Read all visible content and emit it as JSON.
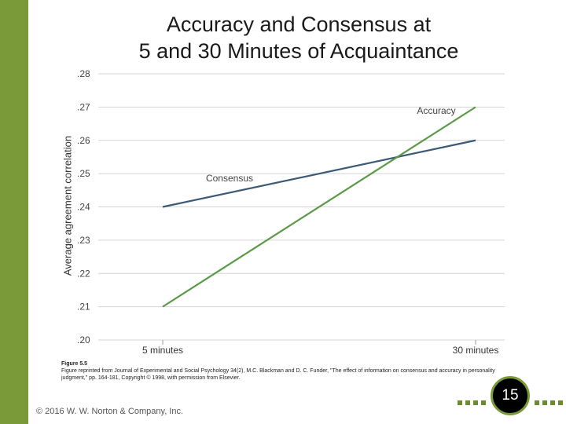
{
  "slide": {
    "title_line1": "Accuracy and Consensus at",
    "title_line2": "5 and 30 Minutes of Acquaintance",
    "copyright": "© 2016 W. W. Norton & Company, Inc.",
    "page_number": "15",
    "accent_color": "#7a9a3a"
  },
  "figure": {
    "number": "Figure 5.5",
    "caption": "Figure reprinted from Journal of Experimental and Social Psychology 34(2), M.C. Blackman and D. C. Funder, \"The effect of information on consensus and accuracy in personality judgment,\" pp. 164-181, Copyright © 1998, with permission from Elsevier."
  },
  "chart_data": {
    "type": "line",
    "title": "Accuracy and Consensus at 5 and 30 Minutes of Acquaintance",
    "xlabel": "",
    "ylabel": "Average agreement correlation",
    "categories": [
      "5 minutes",
      "30 minutes"
    ],
    "ylim": [
      0.2,
      0.28
    ],
    "yticks": [
      ".20",
      ".21",
      ".22",
      ".23",
      ".24",
      ".25",
      ".26",
      ".27",
      ".28"
    ],
    "grid": true,
    "series": [
      {
        "name": "Consensus",
        "values": [
          0.24,
          0.26
        ],
        "color": "#3b5a78"
      },
      {
        "name": "Accuracy",
        "values": [
          0.21,
          0.27
        ],
        "color": "#5a9a48"
      }
    ]
  }
}
